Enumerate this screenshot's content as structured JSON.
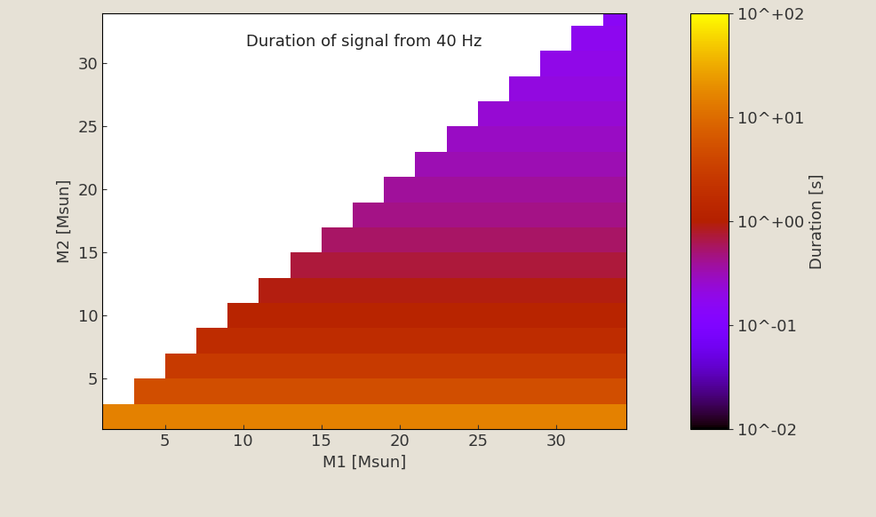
{
  "chart_data": {
    "type": "heatmap",
    "title": "Duration of signal from 40 Hz",
    "x_label": "M1 [Msun]",
    "y_label": "M2 [Msun]",
    "xlim": [
      1,
      34.5
    ],
    "ylim": [
      1,
      34
    ],
    "xticks": [
      5,
      10,
      15,
      20,
      25,
      30
    ],
    "yticks": [
      5,
      10,
      15,
      20,
      25,
      30
    ],
    "x_edges": [
      1,
      3,
      5,
      7,
      9,
      11,
      13,
      15,
      17,
      19,
      21,
      23,
      25,
      27,
      29,
      31,
      33,
      35
    ],
    "y_edges": [
      1,
      3,
      5,
      7,
      9,
      11,
      13,
      15,
      17,
      19,
      21,
      23,
      25,
      27,
      29,
      31,
      33,
      35
    ],
    "cells": [
      [
        15,
        15,
        15,
        15,
        15,
        15,
        15,
        15,
        15,
        15,
        15,
        15,
        15,
        15,
        15,
        15,
        15
      ],
      [
        null,
        5,
        5,
        5,
        5,
        5,
        5,
        5,
        5,
        5,
        5,
        5,
        5,
        5,
        5,
        5,
        5
      ],
      [
        null,
        null,
        2.8,
        2.8,
        2.8,
        2.8,
        2.8,
        2.8,
        2.8,
        2.8,
        2.8,
        2.8,
        2.8,
        2.8,
        2.8,
        2.8,
        2.8
      ],
      [
        null,
        null,
        null,
        1.7,
        1.7,
        1.7,
        1.7,
        1.7,
        1.7,
        1.7,
        1.7,
        1.7,
        1.7,
        1.7,
        1.7,
        1.7,
        1.7
      ],
      [
        null,
        null,
        null,
        null,
        1.2,
        1.2,
        1.2,
        1.2,
        1.2,
        1.2,
        1.2,
        1.2,
        1.2,
        1.2,
        1.2,
        1.2,
        1.2
      ],
      [
        null,
        null,
        null,
        null,
        null,
        0.9,
        0.9,
        0.9,
        0.9,
        0.9,
        0.9,
        0.9,
        0.9,
        0.9,
        0.9,
        0.9,
        0.9
      ],
      [
        null,
        null,
        null,
        null,
        null,
        null,
        0.7,
        0.7,
        0.7,
        0.7,
        0.7,
        0.7,
        0.7,
        0.7,
        0.7,
        0.7,
        0.7
      ],
      [
        null,
        null,
        null,
        null,
        null,
        null,
        null,
        0.55,
        0.55,
        0.55,
        0.55,
        0.55,
        0.55,
        0.55,
        0.55,
        0.55,
        0.55
      ],
      [
        null,
        null,
        null,
        null,
        null,
        null,
        null,
        null,
        0.45,
        0.45,
        0.45,
        0.45,
        0.45,
        0.45,
        0.45,
        0.45,
        0.45
      ],
      [
        null,
        null,
        null,
        null,
        null,
        null,
        null,
        null,
        null,
        0.38,
        0.38,
        0.38,
        0.38,
        0.38,
        0.38,
        0.38,
        0.38
      ],
      [
        null,
        null,
        null,
        null,
        null,
        null,
        null,
        null,
        null,
        null,
        0.32,
        0.32,
        0.32,
        0.32,
        0.32,
        0.32,
        0.32
      ],
      [
        null,
        null,
        null,
        null,
        null,
        null,
        null,
        null,
        null,
        null,
        null,
        0.28,
        0.28,
        0.28,
        0.28,
        0.28,
        0.28
      ],
      [
        null,
        null,
        null,
        null,
        null,
        null,
        null,
        null,
        null,
        null,
        null,
        null,
        0.24,
        0.24,
        0.24,
        0.24,
        0.24
      ],
      [
        null,
        null,
        null,
        null,
        null,
        null,
        null,
        null,
        null,
        null,
        null,
        null,
        null,
        0.21,
        0.21,
        0.21,
        0.21
      ],
      [
        null,
        null,
        null,
        null,
        null,
        null,
        null,
        null,
        null,
        null,
        null,
        null,
        null,
        null,
        0.19,
        0.19,
        0.19
      ],
      [
        null,
        null,
        null,
        null,
        null,
        null,
        null,
        null,
        null,
        null,
        null,
        null,
        null,
        null,
        null,
        0.17,
        0.17
      ],
      [
        null,
        null,
        null,
        null,
        null,
        null,
        null,
        null,
        null,
        null,
        null,
        null,
        null,
        null,
        null,
        null,
        0.15
      ]
    ],
    "colorbar_label": "Duration [s]",
    "colorbar_lim": [
      0.01,
      100
    ],
    "colorbar_ticks": [
      {
        "value": 0.01,
        "label": "10^-02"
      },
      {
        "value": 0.1,
        "label": "10^-01"
      },
      {
        "value": 1,
        "label": "10^+00"
      },
      {
        "value": 10,
        "label": "10^+01"
      },
      {
        "value": 100,
        "label": "10^+02"
      }
    ]
  }
}
